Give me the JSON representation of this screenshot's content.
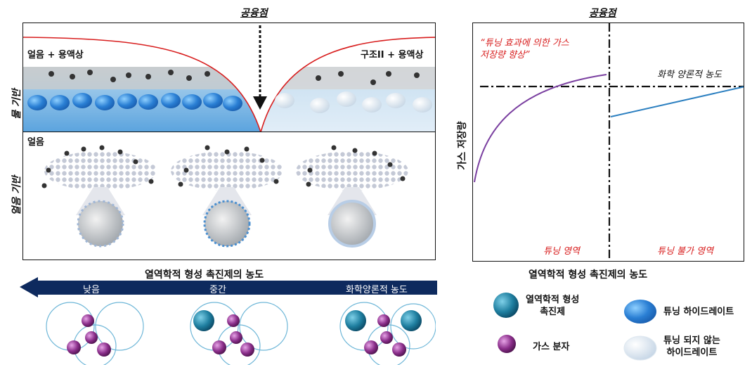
{
  "left": {
    "eutectic_label": "공융점",
    "water_based_label": "물 기반",
    "ice_based_label": "얼음 기반",
    "ice_solution_label": "얼음 + 용액상",
    "sii_solution_label": "구조II + 용액상",
    "ice_label": "얼음"
  },
  "bottom": {
    "arrow_title": "열역학적 형성 촉진제의 농도",
    "low_label": "낮음",
    "medium_label": "중간",
    "stoich_label": "화학양론적 농도"
  },
  "chart": {
    "eutectic_label": "공융점",
    "annotation": "“튜닝 효과에 의한 가스\n저장량 향상”",
    "stoich_label": "화학 양론적 농도",
    "ylabel": "가스 저장량",
    "xlabel": "열역학적 형성 촉진제의 농도",
    "tuning_region": "튜닝 영역",
    "no_tuning_region": "튜닝 불가 영역"
  },
  "legend": {
    "promoter": "열역학적 형성\n촉진제",
    "gas": "가스 분자",
    "tuned": "튜닝 하이드레이트",
    "untuned": "튜닝 되지 않는\n하이드레이트"
  },
  "colors": {
    "navy": "#0e2a5e",
    "red_curve": "#d81e1e",
    "purple_curve": "#7a3fa0",
    "blue_line": "#2b7fc0",
    "promoter": "#1f7fa0",
    "gas": "#8a2e8a"
  }
}
